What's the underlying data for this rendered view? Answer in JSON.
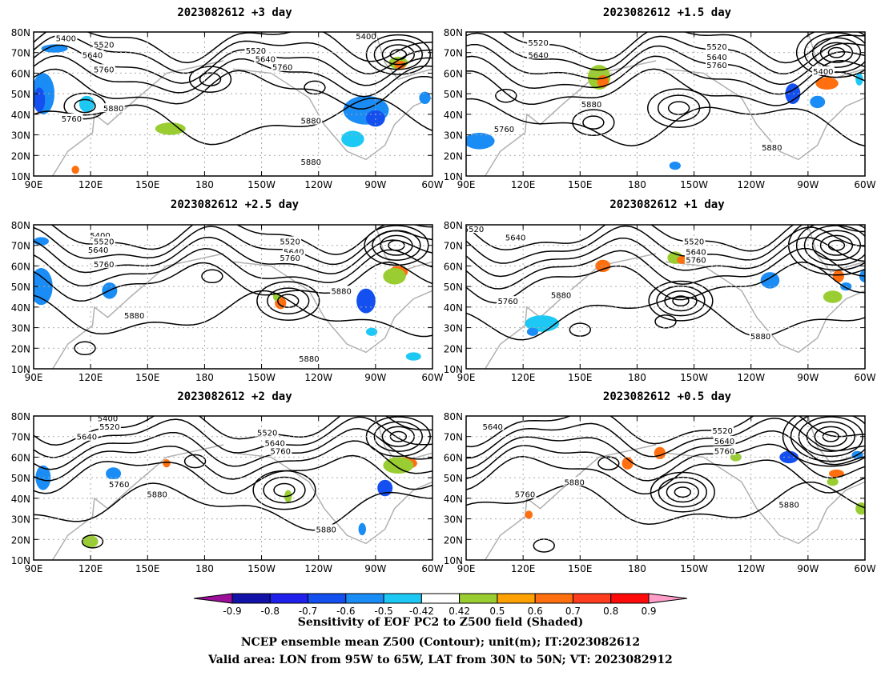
{
  "figure": {
    "footer": [
      "Sensitivity of EOF PC2 to Z500 field (Shaded)",
      "NCEP ensemble mean Z500 (Contour); unit(m); IT:2023082612",
      "Valid area: LON from 95W to 65W, LAT from 30N to 50N; VT: 2023082912"
    ]
  },
  "chart_data": [
    {
      "type": "heatmap",
      "title": "2023082612 +3 day",
      "x_ticks": [
        "90E",
        "120E",
        "150E",
        "180",
        "150W",
        "120W",
        "90W",
        "60W"
      ],
      "y_ticks": [
        "10N",
        "20N",
        "30N",
        "40N",
        "50N",
        "60N",
        "70N",
        "80N"
      ],
      "x_range_lon": [
        90,
        300
      ],
      "y_range_lat": [
        10,
        80
      ],
      "contour_labels": [
        "5400",
        "5520",
        "5640",
        "5760",
        "5880"
      ],
      "shading": "positive and negative sensitivity patches"
    },
    {
      "type": "heatmap",
      "title": "2023082612 +1.5 day",
      "x_ticks": [
        "90E",
        "120E",
        "150E",
        "180",
        "150W",
        "120W",
        "90W",
        "60W"
      ],
      "y_ticks": [
        "10N",
        "20N",
        "30N",
        "40N",
        "50N",
        "60N",
        "70N",
        "80N"
      ],
      "x_range_lon": [
        90,
        300
      ],
      "y_range_lat": [
        10,
        80
      ],
      "contour_labels": [
        "5400",
        "5520",
        "5640",
        "5760",
        "5880"
      ],
      "shading": "positive and negative sensitivity patches"
    },
    {
      "type": "heatmap",
      "title": "2023082612 +2.5 day",
      "x_ticks": [
        "90E",
        "120E",
        "150E",
        "180",
        "150W",
        "120W",
        "90W",
        "60W"
      ],
      "y_ticks": [
        "10N",
        "20N",
        "30N",
        "40N",
        "50N",
        "60N",
        "70N",
        "80N"
      ],
      "x_range_lon": [
        90,
        300
      ],
      "y_range_lat": [
        10,
        80
      ],
      "contour_labels": [
        "5400",
        "5520",
        "5640",
        "5760",
        "5880"
      ],
      "shading": "positive and negative sensitivity patches"
    },
    {
      "type": "heatmap",
      "title": "2023082612 +1 day",
      "x_ticks": [
        "90E",
        "120E",
        "150E",
        "180",
        "150W",
        "120W",
        "90W",
        "60W"
      ],
      "y_ticks": [
        "10N",
        "20N",
        "30N",
        "40N",
        "50N",
        "60N",
        "70N",
        "80N"
      ],
      "x_range_lon": [
        90,
        300
      ],
      "y_range_lat": [
        10,
        80
      ],
      "contour_labels": [
        "5520",
        "5640",
        "5760",
        "5880"
      ],
      "shading": "positive and negative sensitivity patches"
    },
    {
      "type": "heatmap",
      "title": "2023082612 +2 day",
      "x_ticks": [
        "90E",
        "120E",
        "150E",
        "180",
        "150W",
        "120W",
        "90W",
        "60W"
      ],
      "y_ticks": [
        "10N",
        "20N",
        "30N",
        "40N",
        "50N",
        "60N",
        "70N",
        "80N"
      ],
      "x_range_lon": [
        90,
        300
      ],
      "y_range_lat": [
        10,
        80
      ],
      "contour_labels": [
        "5400",
        "5520",
        "5640",
        "5760",
        "5880"
      ],
      "shading": "positive and negative sensitivity patches"
    },
    {
      "type": "heatmap",
      "title": "2023082612 +0.5 day",
      "x_ticks": [
        "90E",
        "120E",
        "150E",
        "180",
        "150W",
        "120W",
        "90W",
        "60W"
      ],
      "y_ticks": [
        "10N",
        "20N",
        "30N",
        "40N",
        "50N",
        "60N",
        "70N",
        "80N"
      ],
      "x_range_lon": [
        90,
        300
      ],
      "y_range_lat": [
        10,
        80
      ],
      "contour_labels": [
        "5520",
        "5640",
        "5760",
        "5880"
      ],
      "shading": "positive and negative sensitivity patches"
    },
    {
      "type": "colorbar",
      "tick_labels": [
        "-0.9",
        "-0.8",
        "-0.7",
        "-0.6",
        "-0.5",
        "-0.42",
        "0.42",
        "0.5",
        "0.6",
        "0.7",
        "0.8",
        "0.9"
      ],
      "colors": [
        "#9b0f9b",
        "#1212a8",
        "#2020ec",
        "#1450f0",
        "#1a8cf5",
        "#1ec8f5",
        "#ffffff",
        "#9acd32",
        "#ffa100",
        "#ff6f0f",
        "#ff3c1e",
        "#ff0a0a",
        "#ff9ec8"
      ]
    }
  ]
}
